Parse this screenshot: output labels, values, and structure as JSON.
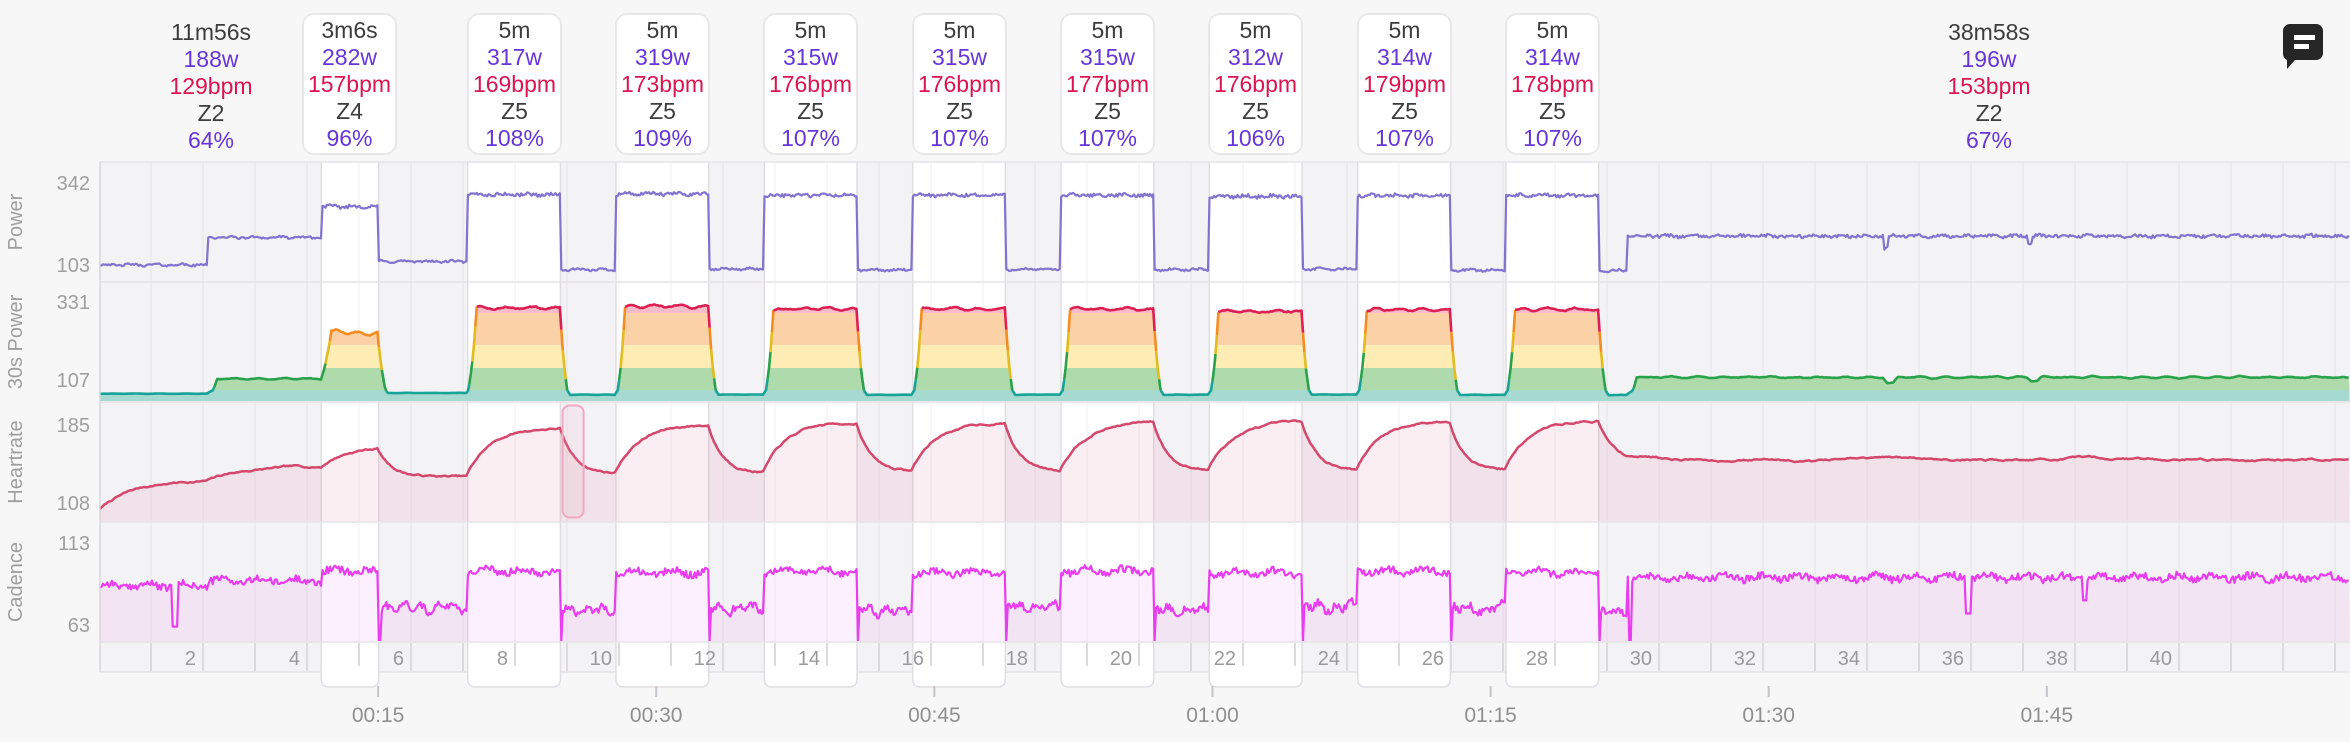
{
  "colors": {
    "page_bg": "#f7f7f8",
    "plot_bg": "#f3f2f4",
    "column_bg": "#ffffff",
    "track_border": "#e4e2e5",
    "column_edge": "#e0dee2",
    "lap_line": "rgba(0,0,0,0.035)",
    "strip_line": "#dcdadd",
    "axis_text": "#9e9e9e",
    "strip_text": "#9a9a9a",
    "time_text": "#8f8f8f",
    "tick_mark": "#c6c4c8",
    "power_line": "#8273cf",
    "hr_line": "#d5486d",
    "hr_fill": "rgba(213,72,109,0.09)",
    "cadence_line": "#e93df0",
    "cadence_fill": "rgba(233,61,240,0.08)",
    "zone_line_colors": [
      "#17a398",
      "#2aa24c",
      "#e3bb1f",
      "#f68c1f",
      "#dc1f53"
    ],
    "zone_band_colors": [
      "#a6d9d0",
      "#afdbac",
      "#fdedb5",
      "#fbd1a8",
      "#f7bcca"
    ],
    "card_bg": "#ffffff",
    "card_border": "#e9e7ea",
    "text_duration": "#3c3c3c",
    "text_power": "#6636d9",
    "text_hr": "#dc1550",
    "text_zone": "#3c3c3c",
    "text_pct": "#6636d9",
    "selection_border": "#f2a9c0",
    "selection_fill": "rgba(246,166,192,0.12)",
    "comment_icon": "#262626"
  },
  "summaries": [
    {
      "boxed": false,
      "duration": "11m56s",
      "power": "188w",
      "hr": "129bpm",
      "zone": "Z2",
      "pct": "64%",
      "center_min": 5.965
    },
    {
      "boxed": true,
      "duration": "3m6s",
      "power": "282w",
      "hr": "157bpm",
      "zone": "Z4",
      "pct": "96%",
      "segment_index": 2
    },
    {
      "boxed": true,
      "duration": "5m",
      "power": "317w",
      "hr": "169bpm",
      "zone": "Z5",
      "pct": "108%",
      "segment_index": 4
    },
    {
      "boxed": true,
      "duration": "5m",
      "power": "319w",
      "hr": "173bpm",
      "zone": "Z5",
      "pct": "109%",
      "segment_index": 6
    },
    {
      "boxed": true,
      "duration": "5m",
      "power": "315w",
      "hr": "176bpm",
      "zone": "Z5",
      "pct": "107%",
      "segment_index": 8
    },
    {
      "boxed": true,
      "duration": "5m",
      "power": "315w",
      "hr": "176bpm",
      "zone": "Z5",
      "pct": "107%",
      "segment_index": 10
    },
    {
      "boxed": true,
      "duration": "5m",
      "power": "315w",
      "hr": "177bpm",
      "zone": "Z5",
      "pct": "107%",
      "segment_index": 12
    },
    {
      "boxed": true,
      "duration": "5m",
      "power": "312w",
      "hr": "176bpm",
      "zone": "Z5",
      "pct": "106%",
      "segment_index": 14
    },
    {
      "boxed": true,
      "duration": "5m",
      "power": "314w",
      "hr": "179bpm",
      "zone": "Z5",
      "pct": "107%",
      "segment_index": 16
    },
    {
      "boxed": true,
      "duration": "5m",
      "power": "314w",
      "hr": "178bpm",
      "zone": "Z5",
      "pct": "107%",
      "segment_index": 18
    },
    {
      "boxed": false,
      "duration": "38m58s",
      "power": "196w",
      "hr": "153bpm",
      "zone": "Z2",
      "pct": "67%",
      "center_min": 101.87
    }
  ],
  "x_axis": {
    "time_ticks": [
      {
        "label": "00:15",
        "min": 15
      },
      {
        "label": "00:30",
        "min": 30
      },
      {
        "label": "00:45",
        "min": 45
      },
      {
        "label": "01:00",
        "min": 60
      },
      {
        "label": "01:15",
        "min": 75
      },
      {
        "label": "01:30",
        "min": 90
      },
      {
        "label": "01:45",
        "min": 105
      }
    ],
    "interval_numbers": [
      2,
      4,
      6,
      8,
      10,
      12,
      14,
      16,
      18,
      20,
      22,
      24,
      26,
      28,
      30,
      32,
      34,
      36,
      38,
      40
    ]
  },
  "chart_data": {
    "type": "line",
    "x_unit": "minutes",
    "total_min": 121.35,
    "grid": false,
    "tracks": [
      {
        "name": "Power",
        "unit": "w",
        "axis_ticks": [
          342,
          103
        ]
      },
      {
        "name": "30s Power",
        "unit": "w",
        "axis_ticks": [
          331,
          107
        ],
        "zone_cutoffs_w": [
          162,
          221,
          265,
          309
        ],
        "zone_names": [
          "Z1",
          "Z2",
          "Z3",
          "Z4",
          "Z5"
        ]
      },
      {
        "name": "Heartrate",
        "unit": "bpm",
        "axis_ticks": [
          185,
          108
        ]
      },
      {
        "name": "Cadence",
        "unit": "rpm",
        "axis_ticks": [
          113,
          63
        ]
      }
    ],
    "segments": [
      {
        "type": "warmup",
        "duration_min": 5.8,
        "power_w": 112,
        "hr_target": 131,
        "cadence": 87
      },
      {
        "type": "warmup",
        "duration_min": 6.13,
        "power_w": 192,
        "hr_target": 144,
        "cadence": 90
      },
      {
        "type": "interval",
        "duration_min": 3.1,
        "power_w": 282,
        "hr_target": 164,
        "cadence": 96
      },
      {
        "type": "recovery",
        "duration_min": 4.8,
        "power_w": 122,
        "hr_target": 134,
        "cadence": 74
      },
      {
        "type": "interval",
        "duration_min": 5.0,
        "power_w": 317,
        "hr_target": 183,
        "cadence": 96
      },
      {
        "type": "recovery",
        "duration_min": 3.0,
        "power_w": 98,
        "hr_target": 137,
        "cadence": 72
      },
      {
        "type": "interval",
        "duration_min": 5.0,
        "power_w": 319,
        "hr_target": 186,
        "cadence": 95
      },
      {
        "type": "recovery",
        "duration_min": 3.0,
        "power_w": 100,
        "hr_target": 138,
        "cadence": 73
      },
      {
        "type": "interval",
        "duration_min": 5.0,
        "power_w": 315,
        "hr_target": 188,
        "cadence": 96
      },
      {
        "type": "recovery",
        "duration_min": 3.0,
        "power_w": 97,
        "hr_target": 139,
        "cadence": 72
      },
      {
        "type": "interval",
        "duration_min": 5.0,
        "power_w": 315,
        "hr_target": 188,
        "cadence": 95
      },
      {
        "type": "recovery",
        "duration_min": 3.0,
        "power_w": 99,
        "hr_target": 140,
        "cadence": 74
      },
      {
        "type": "interval",
        "duration_min": 5.0,
        "power_w": 315,
        "hr_target": 189,
        "cadence": 96
      },
      {
        "type": "recovery",
        "duration_min": 3.0,
        "power_w": 98,
        "hr_target": 140,
        "cadence": 72
      },
      {
        "type": "interval",
        "duration_min": 5.0,
        "power_w": 312,
        "hr_target": 188,
        "cadence": 95
      },
      {
        "type": "recovery",
        "duration_min": 3.0,
        "power_w": 100,
        "hr_target": 141,
        "cadence": 74
      },
      {
        "type": "interval",
        "duration_min": 5.0,
        "power_w": 314,
        "hr_target": 190,
        "cadence": 96
      },
      {
        "type": "recovery",
        "duration_min": 3.0,
        "power_w": 97,
        "hr_target": 141,
        "cadence": 73
      },
      {
        "type": "interval",
        "duration_min": 5.0,
        "power_w": 314,
        "hr_target": 190,
        "cadence": 95
      },
      {
        "type": "recovery",
        "duration_min": 1.55,
        "power_w": 95,
        "hr_target": 150,
        "cadence": 70
      },
      {
        "type": "cooldown",
        "duration_min": 38.97,
        "power_w": 196,
        "hr_target": 151,
        "cadence": 92
      }
    ],
    "cadence_dips": [
      {
        "t": 3.9,
        "len": 0.3,
        "value": 62
      },
      {
        "t": 82.45,
        "len": 0.14,
        "value": 40
      },
      {
        "t": 100.6,
        "len": 0.35,
        "value": 70
      },
      {
        "t": 106.9,
        "len": 0.25,
        "value": 78
      }
    ],
    "power_dips": [
      {
        "t": 96.2,
        "len": 0.25,
        "delta": -35
      },
      {
        "t": 104.0,
        "len": 0.2,
        "delta": -20
      }
    ],
    "selection_marker": {
      "track": "Heartrate",
      "t_start": 24.95,
      "t_end": 26.08
    }
  }
}
